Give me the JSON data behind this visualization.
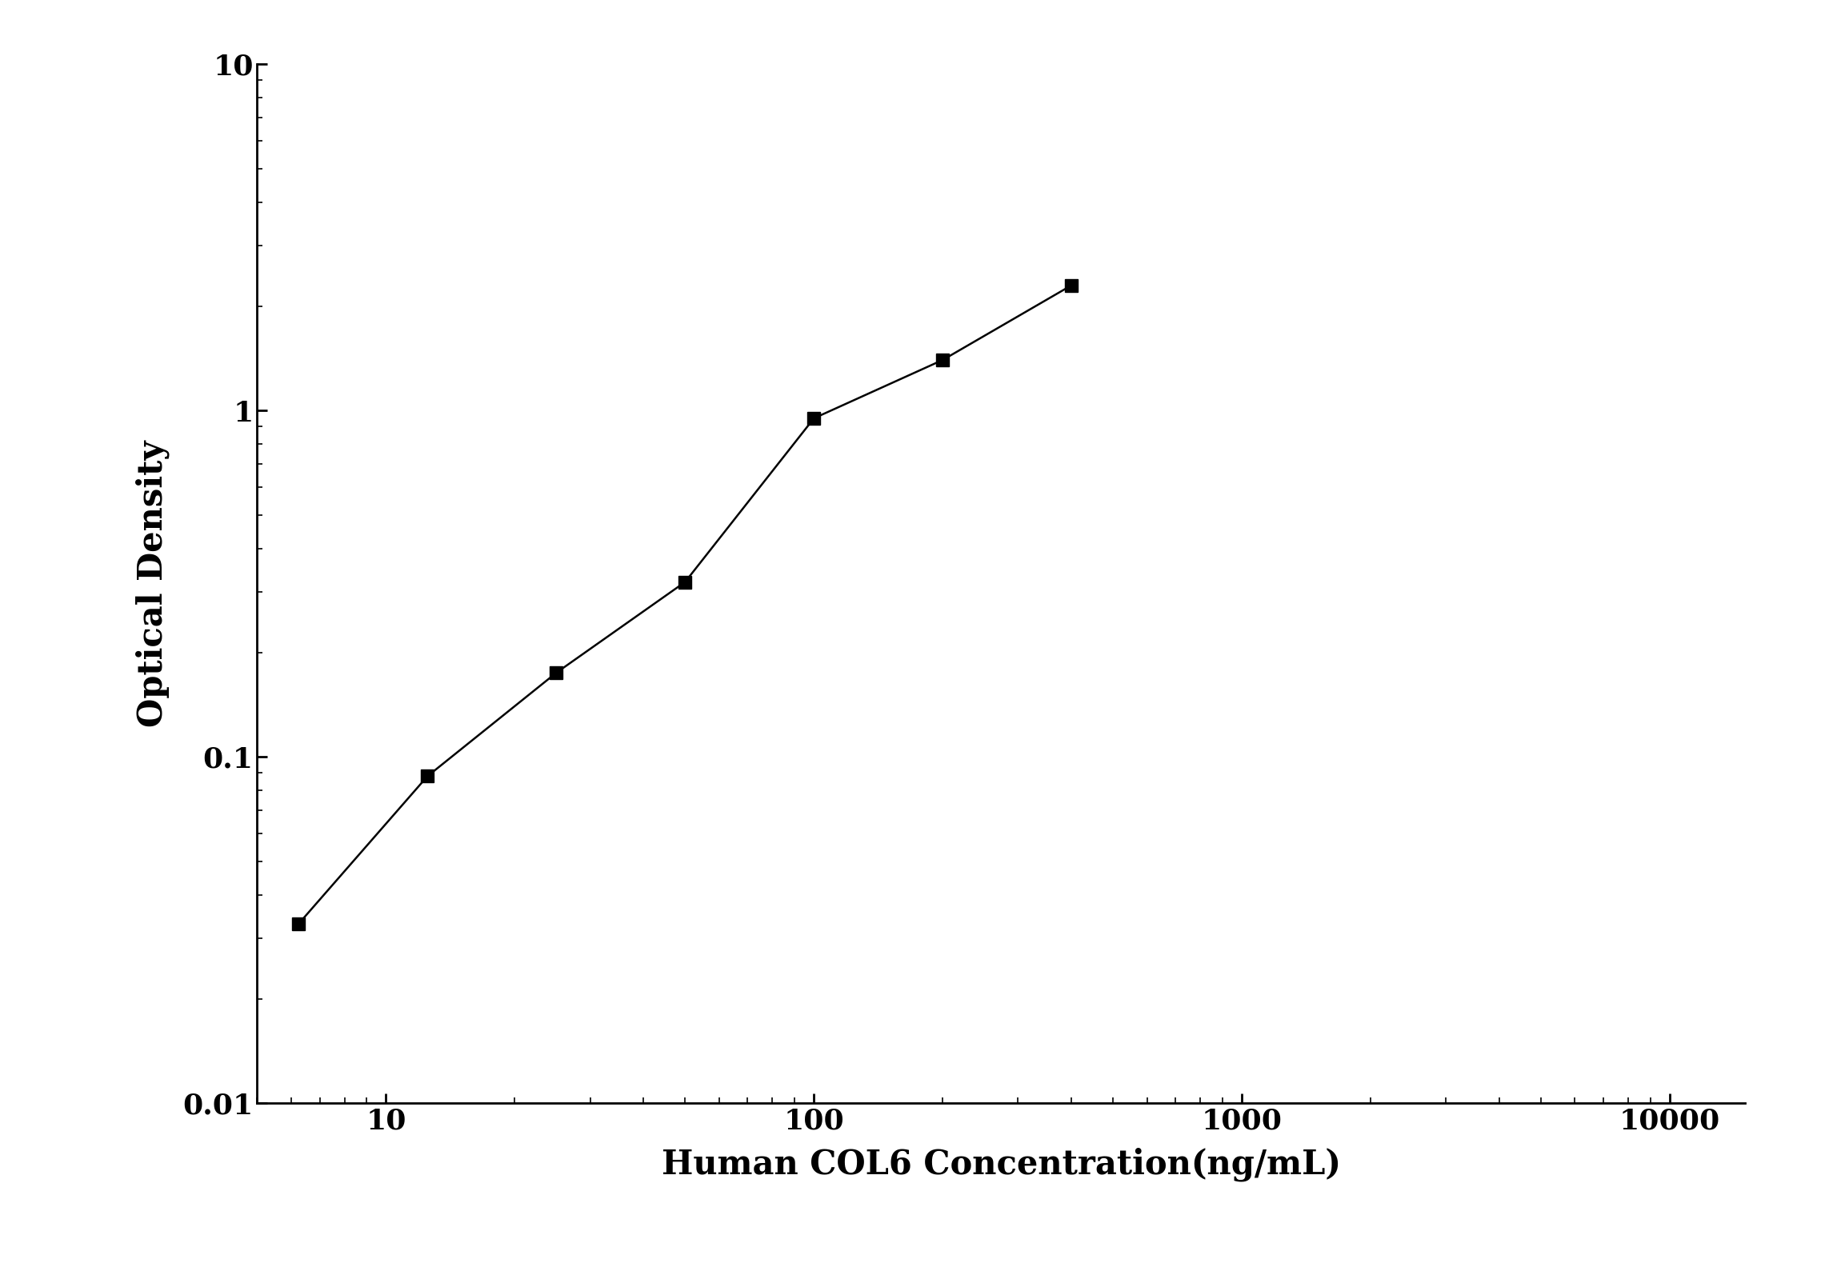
{
  "x_data": [
    6.25,
    12.5,
    25,
    50,
    100,
    200,
    400
  ],
  "y_data": [
    0.033,
    0.088,
    0.175,
    0.32,
    0.95,
    1.4,
    2.3
  ],
  "xlabel": "Human COL6 Concentration(ng/mL)",
  "ylabel": "Optical Density",
  "xlim": [
    5,
    15000
  ],
  "ylim": [
    0.01,
    10
  ],
  "line_color": "#000000",
  "marker": "s",
  "marker_color": "#000000",
  "marker_size": 11,
  "line_width": 1.8,
  "background_color": "#ffffff",
  "xlabel_fontsize": 30,
  "ylabel_fontsize": 30,
  "tick_fontsize": 26,
  "spine_linewidth": 2.0,
  "x_ticks": [
    10,
    100,
    1000,
    10000
  ],
  "x_tick_labels": [
    "10",
    "100",
    "1000",
    "10000"
  ],
  "y_ticks": [
    0.01,
    0.1,
    1,
    10
  ],
  "y_tick_labels": [
    "0.01",
    "0.1",
    "1",
    "10"
  ]
}
